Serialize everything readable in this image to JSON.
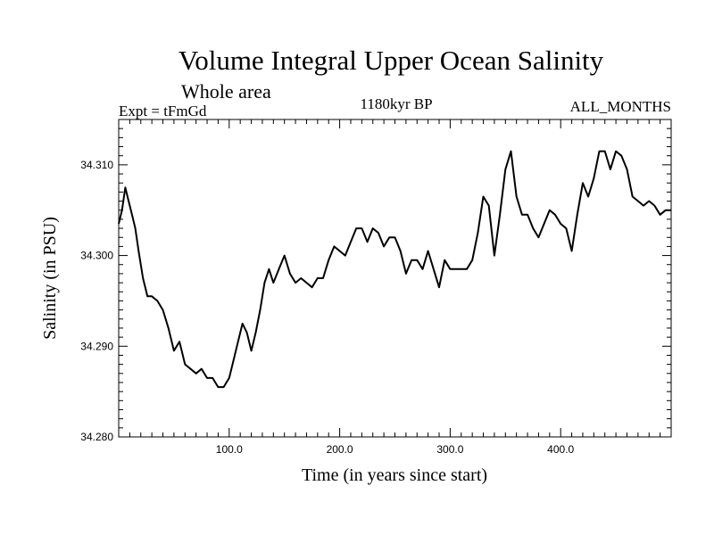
{
  "page": {
    "title": "Volume Integral Upper Ocean Salinity",
    "subtitle": "Whole area",
    "experiment": "Expt = tFmGd",
    "period": "1180kyr BP",
    "months": "ALL_MONTHS"
  },
  "chart_data": {
    "type": "line",
    "title": "Volume Integral Upper Ocean Salinity",
    "xlabel": "Time (in years since start)",
    "ylabel": "Salinity (in PSU)",
    "xlim": [
      0,
      500
    ],
    "ylim": [
      34.28,
      34.315
    ],
    "x_ticks": [
      100,
      200,
      300,
      400
    ],
    "x_tick_labels": [
      "100.0",
      "200.0",
      "300.0",
      "400.0"
    ],
    "y_ticks": [
      34.28,
      34.29,
      34.3,
      34.31
    ],
    "y_tick_labels": [
      "34.280",
      "34.290",
      "34.300",
      "34.310"
    ],
    "grid": false,
    "series": [
      {
        "name": "Salinity",
        "color": "#000000",
        "x": [
          0,
          3,
          6,
          9,
          12,
          15,
          18,
          22,
          26,
          30,
          35,
          40,
          45,
          50,
          55,
          60,
          65,
          70,
          75,
          80,
          85,
          90,
          95,
          100,
          104,
          108,
          112,
          116,
          120,
          124,
          128,
          132,
          136,
          140,
          145,
          150,
          155,
          160,
          165,
          170,
          175,
          180,
          185,
          190,
          195,
          200,
          205,
          210,
          215,
          220,
          225,
          230,
          235,
          240,
          245,
          250,
          255,
          260,
          265,
          270,
          275,
          280,
          285,
          290,
          295,
          300,
          305,
          310,
          315,
          320,
          325,
          330,
          335,
          340,
          345,
          350,
          355,
          360,
          365,
          370,
          375,
          380,
          385,
          390,
          395,
          400,
          405,
          410,
          415,
          420,
          425,
          430,
          435,
          440,
          445,
          450,
          455,
          460,
          465,
          470,
          475,
          480,
          485,
          490,
          495,
          500
        ],
        "values": [
          34.3035,
          34.305,
          34.3075,
          34.306,
          34.3045,
          34.303,
          34.3005,
          34.2975,
          34.2955,
          34.2955,
          34.295,
          34.294,
          34.292,
          34.2895,
          34.2905,
          34.288,
          34.2875,
          34.287,
          34.2875,
          34.2865,
          34.2865,
          34.2855,
          34.2855,
          34.2865,
          34.2885,
          34.2905,
          34.2925,
          34.2915,
          34.2895,
          34.2915,
          34.294,
          34.297,
          34.2985,
          34.297,
          34.2985,
          34.3,
          34.298,
          34.297,
          34.2975,
          34.297,
          34.2965,
          34.2975,
          34.2975,
          34.2995,
          34.301,
          34.3005,
          34.3,
          34.3015,
          34.303,
          34.303,
          34.3015,
          34.303,
          34.3025,
          34.301,
          34.302,
          34.302,
          34.3005,
          34.298,
          34.2995,
          34.2995,
          34.2985,
          34.3005,
          34.2985,
          34.2965,
          34.2995,
          34.2985,
          34.2985,
          34.2985,
          34.2985,
          34.2995,
          34.3025,
          34.3065,
          34.3055,
          34.3,
          34.3045,
          34.3095,
          34.3115,
          34.3065,
          34.3045,
          34.3045,
          34.303,
          34.302,
          34.3035,
          34.305,
          34.3045,
          34.3035,
          34.303,
          34.3005,
          34.3045,
          34.308,
          34.3065,
          34.3085,
          34.3115,
          34.3115,
          34.3095,
          34.3115,
          34.311,
          34.3095,
          34.3065,
          34.306,
          34.3055,
          34.306,
          34.3055,
          34.3045,
          34.305,
          34.305
        ]
      }
    ]
  }
}
